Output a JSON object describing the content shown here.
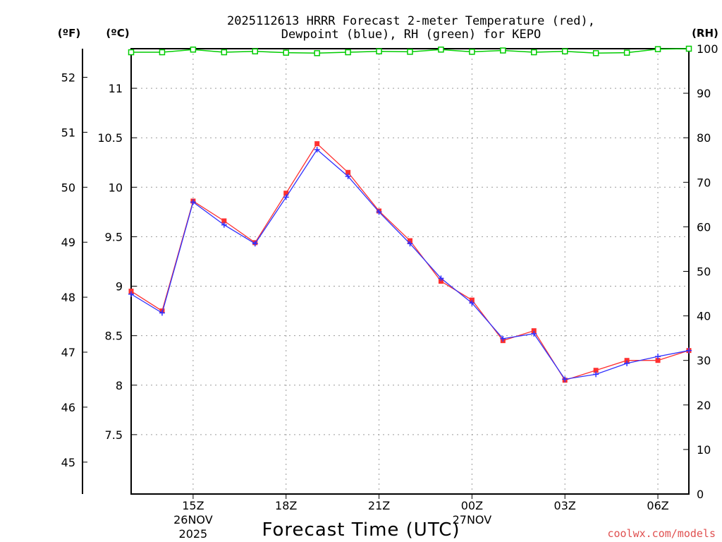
{
  "chart_data": {
    "type": "line",
    "title_line1": "2025112613 HRRR Forecast 2-meter Temperature (red),",
    "title_line2": "Dewpoint (blue), RH (green) for KEPO",
    "xlabel": "Forecast Time (UTC)",
    "credit": "coolwx.com/models",
    "units": {
      "fahrenheit": "(ºF)",
      "celsius": "(ºC)",
      "rh": "(RH)"
    },
    "x_hours": [
      13,
      14,
      15,
      16,
      17,
      18,
      19,
      20,
      21,
      22,
      23,
      24,
      25,
      26,
      27,
      28,
      29,
      30,
      31
    ],
    "xlim": [
      13,
      31
    ],
    "x_ticks": [
      {
        "hour": 15,
        "label": "15Z",
        "date": "26NOV",
        "year": "2025"
      },
      {
        "hour": 18,
        "label": "18Z"
      },
      {
        "hour": 21,
        "label": "21Z"
      },
      {
        "hour": 24,
        "label": "00Z",
        "date": "27NOV"
      },
      {
        "hour": 27,
        "label": "03Z"
      },
      {
        "hour": 30,
        "label": "06Z"
      }
    ],
    "ylim_c": [
      6.9,
      11.4
    ],
    "c_ticks": [
      "7.5",
      "8",
      "8.5",
      "9",
      "9.5",
      "10",
      "10.5",
      "11"
    ],
    "f_ticks": [
      "45",
      "46",
      "47",
      "48",
      "49",
      "50",
      "51",
      "52"
    ],
    "rh_ticks": [
      "0",
      "10",
      "20",
      "30",
      "40",
      "50",
      "60",
      "70",
      "80",
      "90",
      "100"
    ],
    "colors": {
      "temperature": "#ff3030",
      "dewpoint": "#3030ff",
      "rh": "#00cc00"
    },
    "series": [
      {
        "name": "Temperature (°C)",
        "values": [
          8.95,
          8.75,
          9.86,
          9.66,
          9.44,
          9.94,
          10.44,
          10.15,
          9.76,
          9.46,
          9.05,
          8.86,
          8.45,
          8.55,
          8.05,
          8.15,
          8.25,
          8.25,
          8.35
        ]
      },
      {
        "name": "Dewpoint (°C)",
        "values": [
          8.92,
          8.73,
          9.85,
          9.62,
          9.43,
          9.9,
          10.38,
          10.11,
          9.75,
          9.43,
          9.08,
          8.83,
          8.47,
          8.52,
          8.06,
          8.11,
          8.22,
          8.29,
          8.35
        ]
      },
      {
        "name": "RH (%)",
        "values": [
          99.2,
          99.2,
          99.8,
          99.2,
          99.4,
          99.1,
          99.0,
          99.2,
          99.4,
          99.3,
          99.8,
          99.3,
          99.6,
          99.2,
          99.4,
          99.0,
          99.1,
          99.9,
          100.0
        ]
      }
    ]
  }
}
